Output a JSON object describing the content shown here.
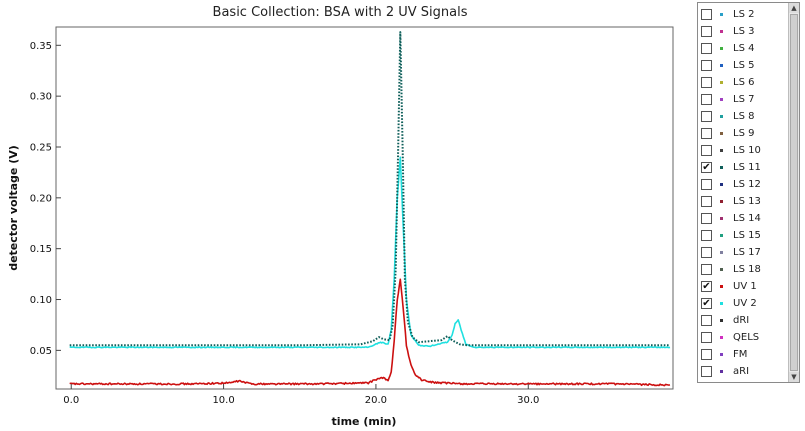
{
  "chart_data": {
    "type": "line",
    "title": "Basic Collection: BSA with 2 UV Signals",
    "xlabel": "time (min)",
    "ylabel": "detector voltage (V)",
    "xlim": [
      -1,
      39.5
    ],
    "ylim": [
      0.012,
      0.368
    ],
    "xticks": [
      0,
      10,
      20,
      30
    ],
    "xtick_labels": [
      "0.0",
      "10.0",
      "20.0",
      "30.0"
    ],
    "yticks": [
      0.05,
      0.1,
      0.15,
      0.2,
      0.25,
      0.3,
      0.35
    ],
    "ytick_labels": [
      "0.05",
      "0.10",
      "0.15",
      "0.20",
      "0.25",
      "0.30",
      "0.35"
    ],
    "grid": false,
    "legend_position": "right panel",
    "series": [
      {
        "name": "LS 11",
        "color": "#0f5f5a",
        "style": "dotted",
        "x": [
          -0.1,
          5,
          10,
          15,
          19.0,
          19.8,
          20.2,
          20.5,
          20.9,
          21.1,
          21.3,
          21.45,
          21.6,
          21.75,
          21.9,
          22.1,
          22.4,
          22.8,
          23.5,
          24.3,
          24.7,
          25.0,
          25.5,
          26,
          30,
          35,
          39.3
        ],
        "values": [
          0.055,
          0.055,
          0.055,
          0.055,
          0.056,
          0.059,
          0.063,
          0.061,
          0.06,
          0.075,
          0.13,
          0.24,
          0.363,
          0.25,
          0.12,
          0.078,
          0.063,
          0.058,
          0.059,
          0.06,
          0.064,
          0.06,
          0.056,
          0.055,
          0.055,
          0.055,
          0.055
        ]
      },
      {
        "name": "UV 1",
        "color": "#cc1010",
        "style": "solid",
        "x": [
          -0.1,
          3,
          8,
          10.4,
          11.0,
          11.5,
          12,
          16,
          19.5,
          20.1,
          20.5,
          20.8,
          21.0,
          21.2,
          21.4,
          21.6,
          21.8,
          22.0,
          22.3,
          22.6,
          23.0,
          23.5,
          24.2,
          26,
          30,
          35,
          39.3
        ],
        "values": [
          0.017,
          0.017,
          0.017,
          0.018,
          0.02,
          0.018,
          0.017,
          0.017,
          0.018,
          0.022,
          0.023,
          0.02,
          0.028,
          0.06,
          0.1,
          0.12,
          0.09,
          0.055,
          0.035,
          0.026,
          0.021,
          0.019,
          0.018,
          0.017,
          0.017,
          0.017,
          0.016
        ]
      },
      {
        "name": "UV 2",
        "color": "#1fe0e0",
        "style": "solid",
        "x": [
          -0.1,
          5,
          10,
          15,
          19.5,
          20.3,
          20.8,
          21.0,
          21.2,
          21.4,
          21.6,
          21.8,
          22.0,
          22.3,
          22.8,
          23.5,
          24.3,
          24.7,
          25.0,
          25.2,
          25.4,
          25.6,
          25.9,
          26.5,
          30,
          35,
          39.3
        ],
        "values": [
          0.053,
          0.053,
          0.053,
          0.053,
          0.053,
          0.058,
          0.056,
          0.07,
          0.12,
          0.2,
          0.24,
          0.17,
          0.1,
          0.065,
          0.055,
          0.054,
          0.057,
          0.058,
          0.065,
          0.076,
          0.08,
          0.07,
          0.056,
          0.053,
          0.053,
          0.053,
          0.053
        ]
      }
    ]
  },
  "legend": {
    "items": [
      {
        "label": "LS  2",
        "checked": false,
        "color": "#2aa0c8"
      },
      {
        "label": "LS  3",
        "checked": false,
        "color": "#c03090"
      },
      {
        "label": "LS  4",
        "checked": false,
        "color": "#40b040"
      },
      {
        "label": "LS  5",
        "checked": false,
        "color": "#2060c0"
      },
      {
        "label": "LS  6",
        "checked": false,
        "color": "#b0b030"
      },
      {
        "label": "LS  7",
        "checked": false,
        "color": "#a040c0"
      },
      {
        "label": "LS  8",
        "checked": false,
        "color": "#20a0a0"
      },
      {
        "label": "LS  9",
        "checked": false,
        "color": "#806040"
      },
      {
        "label": "LS  10",
        "checked": false,
        "color": "#404040"
      },
      {
        "label": "LS  11",
        "checked": true,
        "color": "#0f5f5a"
      },
      {
        "label": "LS  12",
        "checked": false,
        "color": "#203080"
      },
      {
        "label": "LS  13",
        "checked": false,
        "color": "#902030"
      },
      {
        "label": "LS  14",
        "checked": false,
        "color": "#a03070"
      },
      {
        "label": "LS  15",
        "checked": false,
        "color": "#20a080"
      },
      {
        "label": "LS  17",
        "checked": false,
        "color": "#8080a0"
      },
      {
        "label": "LS  18",
        "checked": false,
        "color": "#506050"
      },
      {
        "label": "UV  1",
        "checked": true,
        "color": "#cc1010"
      },
      {
        "label": "UV  2",
        "checked": true,
        "color": "#1fe0e0"
      },
      {
        "label": "dRI",
        "checked": false,
        "color": "#303030"
      },
      {
        "label": "QELS",
        "checked": false,
        "color": "#d030c0"
      },
      {
        "label": "FM",
        "checked": false,
        "color": "#8040c0"
      },
      {
        "label": "aRI",
        "checked": false,
        "color": "#6030a0"
      }
    ]
  }
}
